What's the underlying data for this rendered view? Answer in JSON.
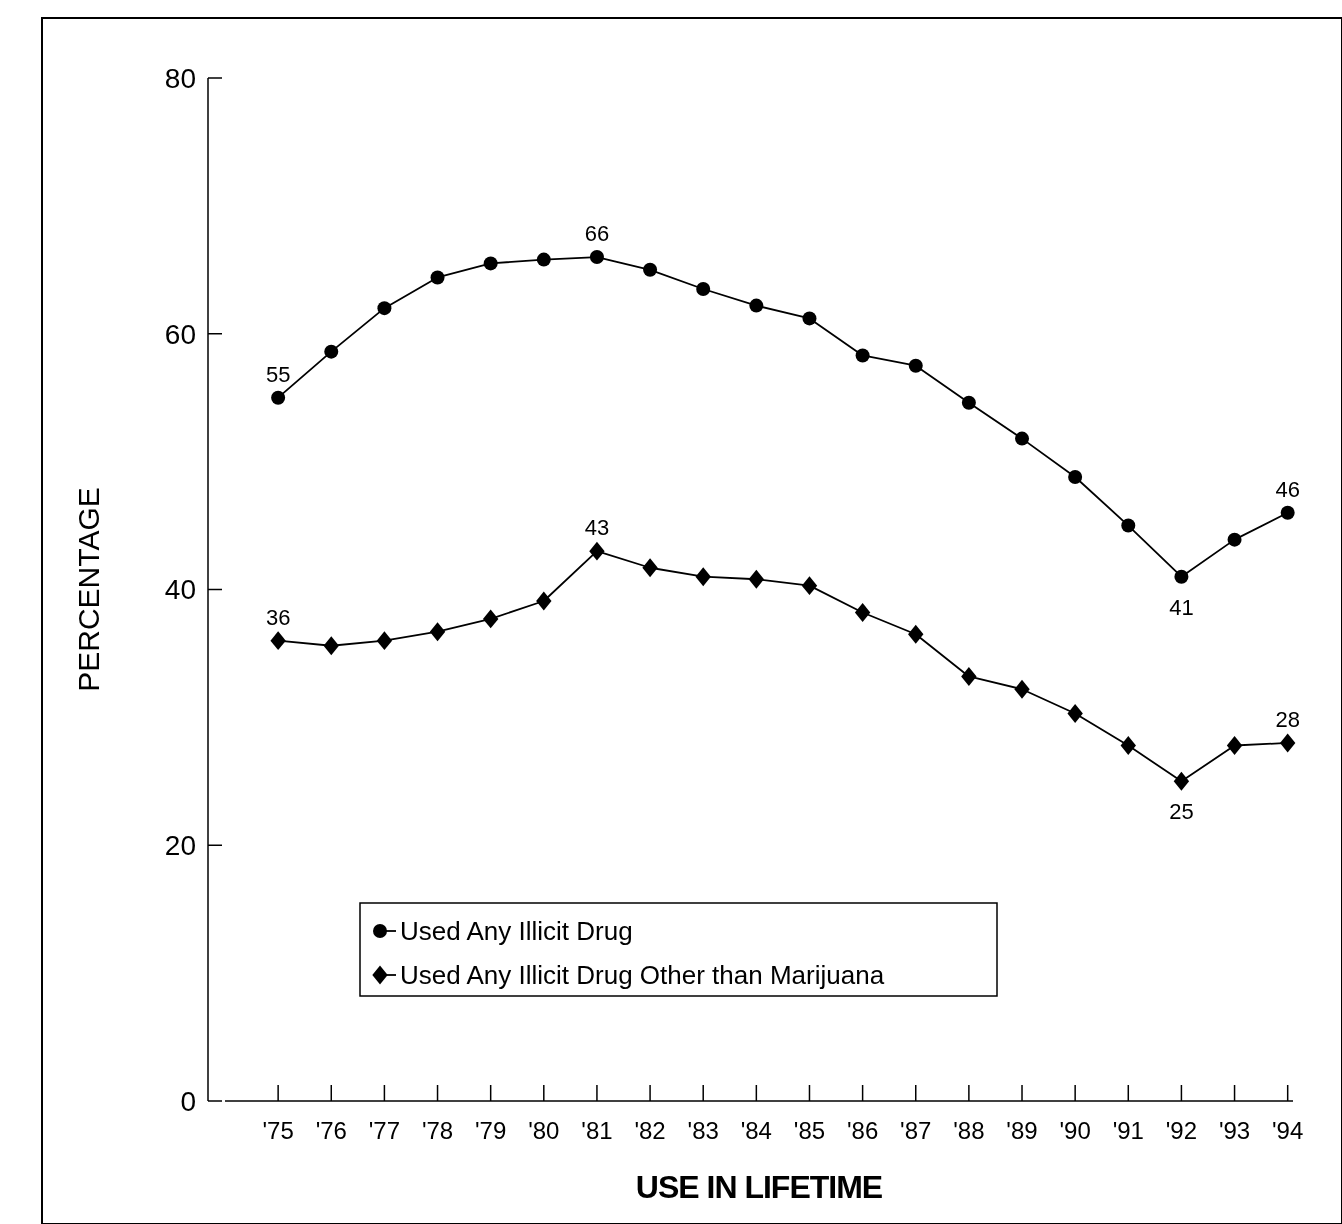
{
  "chart_data": {
    "type": "line",
    "xlabel": "USE IN LIFETIME",
    "ylabel": "PERCENTAGE",
    "categories": [
      "'75",
      "'76",
      "'77",
      "'78",
      "'79",
      "'80",
      "'81",
      "'82",
      "'83",
      "'84",
      "'85",
      "'86",
      "'87",
      "'88",
      "'89",
      "'90",
      "'91",
      "'92",
      "'93",
      "'94"
    ],
    "series": [
      {
        "name": "Used Any Illicit Drug",
        "color": "#000000",
        "marker": "circle",
        "values": [
          55,
          58.6,
          62,
          64.4,
          65.5,
          65.8,
          66,
          65,
          63.5,
          62.2,
          61.2,
          58.3,
          57.5,
          54.6,
          51.8,
          48.8,
          45,
          41,
          43.9,
          46
        ],
        "value_labels": [
          "55",
          null,
          null,
          null,
          null,
          null,
          "66",
          null,
          null,
          null,
          null,
          null,
          null,
          null,
          null,
          null,
          null,
          "41",
          null,
          "46"
        ]
      },
      {
        "name": "Used Any Illicit Drug Other than Marijuana",
        "color": "#000000",
        "marker": "diamond",
        "values": [
          36,
          35.6,
          36,
          36.7,
          37.7,
          39.1,
          43,
          41.7,
          41,
          40.8,
          40.3,
          38.2,
          36.5,
          33.2,
          32.2,
          30.3,
          27.8,
          25,
          27.8,
          28
        ],
        "value_labels": [
          "36",
          null,
          null,
          null,
          null,
          null,
          "43",
          null,
          null,
          null,
          null,
          null,
          null,
          null,
          null,
          null,
          null,
          "25",
          null,
          "28"
        ]
      }
    ],
    "ylim": [
      0,
      80
    ],
    "yticks": [
      0,
      20,
      40,
      60,
      80
    ],
    "grid": false,
    "legend": "bottom left",
    "line_style": "solid"
  }
}
